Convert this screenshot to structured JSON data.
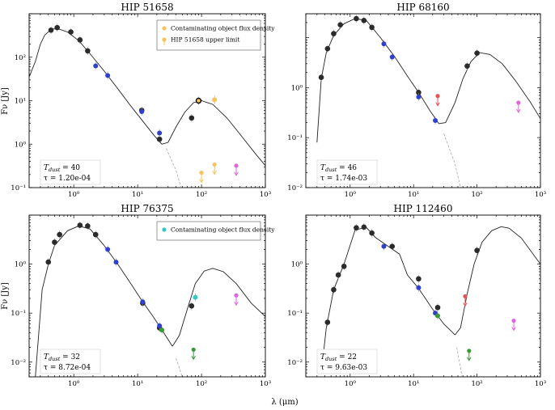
{
  "figure": {
    "xlabel": "λ (μm)",
    "ylabel": "Fν [Jy]",
    "xlabel_text": "λ (μm)",
    "ylabel_text": "Fν [Jy]"
  },
  "colors": {
    "phot_black": "#2b2b2b",
    "phot_blue": "#2f3fd0",
    "contam_orange": "#f7c35a",
    "contam_cyan": "#34c9c4",
    "limit_red": "#e45555",
    "limit_magenta": "#dd66dd",
    "limit_green": "#3a9a3a",
    "model": "#222222"
  },
  "chart_data": [
    {
      "type": "scatter",
      "title": "HIP 51658",
      "xlabel": "λ (μm)",
      "ylabel": "Fν [Jy]",
      "xscale": "log",
      "yscale": "log",
      "xlim": [
        0.2,
        1000
      ],
      "ylim": [
        0.01,
        100
      ],
      "xticks": [
        "10⁰",
        "10¹",
        "10²",
        "10³"
      ],
      "yticks": [
        "10⁻¹",
        "10⁰",
        "10¹",
        "10²"
      ],
      "annotation": {
        "tdust_label": "T",
        "tdust_sub": "dust",
        "tdust_value": " = 40",
        "tau_text": "τ = 1.20e-04"
      },
      "legend": {
        "position": "top-right",
        "entries": [
          "Contaminating object flux density",
          "HIP 51658 upper limit"
        ]
      },
      "series": [
        {
          "name": "photometry",
          "style": "black",
          "points": [
            [
              0.44,
              42
            ],
            [
              0.55,
              48
            ],
            [
              0.9,
              38
            ],
            [
              1.25,
              25
            ],
            [
              1.65,
              14
            ],
            [
              11.6,
              0.6
            ],
            [
              22,
              0.13
            ],
            [
              70,
              0.4
            ],
            [
              90,
              1.0
            ]
          ]
        },
        {
          "name": "photometry",
          "style": "blue",
          "points": [
            [
              2.2,
              6.3
            ],
            [
              3.4,
              3.8
            ],
            [
              11.6,
              0.56
            ],
            [
              22,
              0.18
            ]
          ]
        },
        {
          "name": "Contaminating object flux density",
          "style": "orange",
          "points": [
            [
              90,
              1.0
            ],
            [
              160,
              1.05
            ]
          ]
        },
        {
          "name": "HIP 51658 upper limit",
          "style": "orange_limit",
          "points": [
            [
              100,
              0.022
            ],
            [
              160,
              0.034
            ]
          ]
        },
        {
          "name": "upper limit",
          "style": "magenta_limit",
          "points": [
            [
              350,
              0.032
            ]
          ]
        }
      ],
      "model": {
        "stellar": [
          [
            0.2,
            3.5
          ],
          [
            0.25,
            8
          ],
          [
            0.3,
            20
          ],
          [
            0.35,
            32
          ],
          [
            0.45,
            45
          ],
          [
            0.6,
            44
          ],
          [
            0.8,
            38
          ],
          [
            1.2,
            24
          ],
          [
            1.8,
            12
          ],
          [
            3,
            4.8
          ],
          [
            5,
            1.8
          ],
          [
            8,
            0.72
          ],
          [
            12,
            0.34
          ],
          [
            18,
            0.16
          ],
          [
            24,
            0.1
          ]
        ],
        "combined": [
          [
            24,
            0.1
          ],
          [
            30,
            0.11
          ],
          [
            40,
            0.25
          ],
          [
            55,
            0.55
          ],
          [
            75,
            0.9
          ],
          [
            100,
            1.0
          ],
          [
            150,
            0.82
          ],
          [
            250,
            0.4
          ],
          [
            400,
            0.17
          ],
          [
            700,
            0.06
          ],
          [
            1000,
            0.032
          ]
        ],
        "dashed": [
          [
            28,
            0.08
          ],
          [
            40,
            0.025
          ],
          [
            48,
            0.01
          ]
        ]
      }
    },
    {
      "type": "scatter",
      "title": "HIP 68160",
      "xlabel": "λ (μm)",
      "ylabel": "Fν [Jy]",
      "xscale": "log",
      "yscale": "log",
      "xlim": [
        0.2,
        1000
      ],
      "ylim": [
        0.001,
        3
      ],
      "xticks": [
        "10⁰",
        "10¹",
        "10²",
        "10³"
      ],
      "yticks": [
        "10⁻²",
        "10⁻¹",
        "10⁰"
      ],
      "annotation": {
        "tdust_label": "T",
        "tdust_sub": "dust",
        "tdust_value": " = 46",
        "tau_text": "τ = 1.74e-03"
      },
      "series": [
        {
          "name": "photometry",
          "style": "black",
          "points": [
            [
              0.35,
              0.16
            ],
            [
              0.44,
              0.6
            ],
            [
              0.55,
              1.2
            ],
            [
              0.7,
              1.8
            ],
            [
              1.25,
              2.4
            ],
            [
              1.65,
              2.2
            ],
            [
              2.2,
              1.6
            ],
            [
              12,
              0.08
            ],
            [
              70,
              0.27
            ],
            [
              100,
              0.49
            ]
          ]
        },
        {
          "name": "photometry",
          "style": "blue",
          "points": [
            [
              3.4,
              0.75
            ],
            [
              4.6,
              0.41
            ],
            [
              12,
              0.065
            ],
            [
              22,
              0.022
            ]
          ]
        },
        {
          "name": "upper limit",
          "style": "red_limit",
          "points": [
            [
              24,
              0.068
            ]
          ]
        },
        {
          "name": "upper limit",
          "style": "magenta_limit",
          "points": [
            [
              450,
              0.05
            ]
          ]
        }
      ],
      "model": {
        "stellar": [
          [
            0.3,
            0.008
          ],
          [
            0.35,
            0.15
          ],
          [
            0.42,
            0.5
          ],
          [
            0.55,
            1.1
          ],
          [
            0.8,
            1.9
          ],
          [
            1.2,
            2.4
          ],
          [
            1.8,
            2.2
          ],
          [
            3,
            1.0
          ],
          [
            5,
            0.42
          ],
          [
            8,
            0.17
          ],
          [
            12,
            0.08
          ],
          [
            18,
            0.035
          ],
          [
            25,
            0.019
          ]
        ],
        "combined": [
          [
            25,
            0.019
          ],
          [
            32,
            0.02
          ],
          [
            45,
            0.05
          ],
          [
            60,
            0.15
          ],
          [
            80,
            0.33
          ],
          [
            110,
            0.5
          ],
          [
            160,
            0.46
          ],
          [
            250,
            0.3
          ],
          [
            400,
            0.14
          ],
          [
            700,
            0.05
          ],
          [
            1000,
            0.024
          ]
        ],
        "dashed": [
          [
            30,
            0.012
          ],
          [
            45,
            0.003
          ],
          [
            55,
            0.001
          ]
        ]
      }
    },
    {
      "type": "scatter",
      "title": "HIP 76375",
      "xlabel": "λ (μm)",
      "ylabel": "Fν [Jy]",
      "xscale": "log",
      "yscale": "log",
      "xlim": [
        0.2,
        1000
      ],
      "ylim": [
        0.005,
        10
      ],
      "xticks": [
        "10⁰",
        "10¹",
        "10²",
        "10³"
      ],
      "yticks": [
        "10⁻²",
        "10⁻¹",
        "10⁰"
      ],
      "annotation": {
        "tdust_label": "T",
        "tdust_sub": "dust",
        "tdust_value": " = 32",
        "tau_text": "τ = 8.72e-04"
      },
      "legend": {
        "position": "top-right",
        "entries": [
          "Contaminating object flux density"
        ]
      },
      "series": [
        {
          "name": "photometry",
          "style": "black",
          "points": [
            [
              0.4,
              1.1
            ],
            [
              0.5,
              2.8
            ],
            [
              0.6,
              4.0
            ],
            [
              1.25,
              6.2
            ],
            [
              1.65,
              6.0
            ],
            [
              2.2,
              4.0
            ],
            [
              12,
              0.16
            ],
            [
              22,
              0.05
            ],
            [
              70,
              0.14
            ]
          ]
        },
        {
          "name": "photometry",
          "style": "blue",
          "points": [
            [
              3.4,
              2.0
            ],
            [
              4.6,
              1.1
            ],
            [
              12,
              0.17
            ],
            [
              22,
              0.055
            ]
          ]
        },
        {
          "name": "photometry",
          "style": "green",
          "points": [
            [
              24,
              0.045
            ]
          ]
        },
        {
          "name": "Contaminating object flux density",
          "style": "cyan",
          "points": [
            [
              80,
              0.21
            ]
          ]
        },
        {
          "name": "upper limit",
          "style": "green_limit",
          "points": [
            [
              75,
              0.018
            ]
          ]
        },
        {
          "name": "upper limit",
          "style": "magenta_limit",
          "points": [
            [
              350,
              0.23
            ]
          ]
        }
      ],
      "model": {
        "stellar": [
          [
            0.25,
            0.005
          ],
          [
            0.32,
            0.3
          ],
          [
            0.4,
            1.0
          ],
          [
            0.5,
            2.4
          ],
          [
            0.8,
            4.8
          ],
          [
            1.2,
            6.0
          ],
          [
            1.8,
            5.2
          ],
          [
            3,
            2.4
          ],
          [
            5,
            0.95
          ],
          [
            8,
            0.38
          ],
          [
            12,
            0.17
          ],
          [
            18,
            0.08
          ],
          [
            25,
            0.042
          ],
          [
            35,
            0.021
          ]
        ],
        "combined": [
          [
            35,
            0.021
          ],
          [
            45,
            0.035
          ],
          [
            60,
            0.12
          ],
          [
            80,
            0.4
          ],
          [
            110,
            0.72
          ],
          [
            150,
            0.82
          ],
          [
            220,
            0.7
          ],
          [
            350,
            0.4
          ],
          [
            600,
            0.16
          ],
          [
            1000,
            0.085
          ]
        ],
        "dashed": [
          [
            40,
            0.012
          ],
          [
            50,
            0.005
          ]
        ]
      }
    },
    {
      "type": "scatter",
      "title": "HIP 112460",
      "xlabel": "λ (μm)",
      "ylabel": "Fν [Jy]",
      "xscale": "log",
      "yscale": "log",
      "xlim": [
        0.2,
        1000
      ],
      "ylim": [
        0.005,
        10
      ],
      "xticks": [
        "10⁰",
        "10¹",
        "10²",
        "10³"
      ],
      "yticks": [
        "10⁻²",
        "10⁻¹",
        "10⁰"
      ],
      "annotation": {
        "tdust_label": "T",
        "tdust_sub": "dust",
        "tdust_value": " = 22",
        "tau_text": "τ = 9.63e-03"
      },
      "series": [
        {
          "name": "photometry",
          "style": "black",
          "points": [
            [
              0.44,
              0.065
            ],
            [
              0.55,
              0.3
            ],
            [
              0.65,
              0.6
            ],
            [
              0.8,
              0.9
            ],
            [
              1.25,
              5.5
            ],
            [
              1.65,
              5.7
            ],
            [
              2.2,
              4.3
            ],
            [
              4.6,
              2.3
            ],
            [
              12,
              0.5
            ],
            [
              24,
              0.13
            ],
            [
              100,
              1.9
            ]
          ]
        },
        {
          "name": "photometry",
          "style": "blue",
          "points": [
            [
              3.4,
              2.3
            ],
            [
              12,
              0.33
            ],
            [
              22,
              0.1
            ]
          ]
        },
        {
          "name": "photometry",
          "style": "green",
          "points": [
            [
              24,
              0.088
            ]
          ]
        },
        {
          "name": "upper limit",
          "style": "red_limit",
          "points": [
            [
              65,
              0.22
            ]
          ]
        },
        {
          "name": "upper limit",
          "style": "green_limit",
          "points": [
            [
              75,
              0.017
            ]
          ]
        },
        {
          "name": "upper limit",
          "style": "magenta_limit",
          "points": [
            [
              380,
              0.07
            ]
          ]
        }
      ],
      "model": {
        "stellar": [
          [
            0.35,
            0.006
          ],
          [
            0.42,
            0.05
          ],
          [
            0.55,
            0.3
          ],
          [
            0.8,
            1.0
          ],
          [
            1.2,
            5.0
          ],
          [
            1.8,
            5.6
          ],
          [
            2.5,
            3.5
          ],
          [
            4,
            2.3
          ],
          [
            6,
            1.6
          ],
          [
            8,
            0.6
          ],
          [
            12,
            0.32
          ],
          [
            20,
            0.12
          ],
          [
            30,
            0.06
          ],
          [
            45,
            0.036
          ]
        ],
        "combined": [
          [
            45,
            0.036
          ],
          [
            55,
            0.05
          ],
          [
            70,
            0.25
          ],
          [
            90,
            1.0
          ],
          [
            120,
            2.8
          ],
          [
            170,
            4.8
          ],
          [
            240,
            5.8
          ],
          [
            320,
            5.4
          ],
          [
            500,
            3.4
          ],
          [
            1000,
            1.0
          ]
        ],
        "dashed": [
          [
            48,
            0.02
          ],
          [
            58,
            0.005
          ]
        ]
      }
    }
  ]
}
